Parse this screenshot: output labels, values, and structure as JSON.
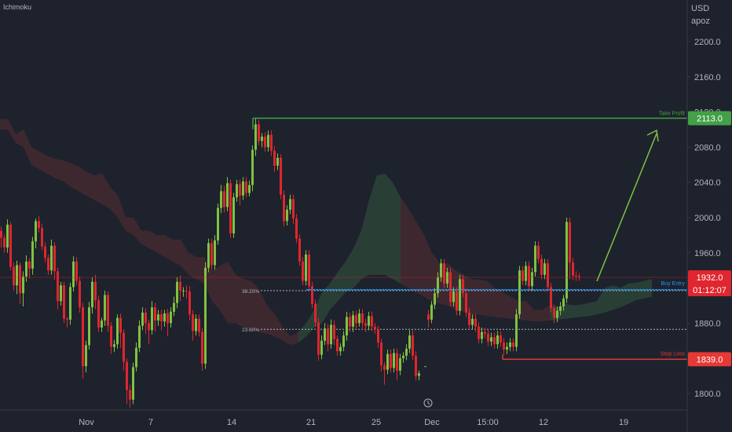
{
  "indicator_label": "Ichimoku",
  "currency": "USD",
  "unit": "apoz",
  "x_ticks": [
    "Nov",
    "7",
    "14",
    "21",
    "25",
    "Dec",
    "15:00",
    "12",
    "19"
  ],
  "y_ticks": [
    "2200.0",
    "2160.0",
    "2120.0",
    "2080.0",
    "2040.0",
    "2000.0",
    "1960.0",
    "1920.0",
    "1880.0",
    "1840.0",
    "1800.0"
  ],
  "colors": {
    "background": "#1e222d",
    "up": "#7fc241",
    "down": "#e0262e",
    "take_profit": "#43a047",
    "stop_loss": "#e53935",
    "entry": "#2196f3",
    "text": "#b2b5be"
  },
  "annotations": {
    "take_profit": {
      "label": "Take Profit",
      "price": 2113.0,
      "badge": "2113.0"
    },
    "buy_entry": {
      "label": "Buy Entry",
      "price": 1918.0
    },
    "stop_loss": {
      "label": "Stop Loss",
      "price": 1839.0,
      "badge": "1839.0"
    },
    "current_price": {
      "price": 1932.0,
      "badge": "1932.0",
      "countdown": "01:12:07"
    },
    "fib_levels": [
      {
        "label": "38.20%",
        "price": 1917.0
      },
      {
        "label": "23.60%",
        "price": 1873.0
      }
    ]
  },
  "chart_data": {
    "type": "candlestick",
    "indicator": "Ichimoku",
    "ylim": [
      1780,
      2230
    ],
    "y_ticks": [
      2200,
      2160,
      2120,
      2080,
      2040,
      2000,
      1960,
      1920,
      1880,
      1840,
      1800
    ],
    "x_ticks": [
      "Nov",
      "7",
      "14",
      "21",
      "25",
      "Dec",
      "15:00",
      "12",
      "19"
    ],
    "candles": [
      [
        0,
        1985,
        1977,
        1990,
        1966
      ],
      [
        4,
        1977,
        1966,
        1981,
        1960
      ],
      [
        8,
        1966,
        1992,
        1998,
        1960
      ],
      [
        12,
        1992,
        1944,
        1995,
        1940
      ],
      [
        16,
        1944,
        1923,
        1949,
        1917
      ],
      [
        20,
        1923,
        1946,
        1951,
        1913
      ],
      [
        24,
        1946,
        1914,
        1949,
        1902
      ],
      [
        28,
        1914,
        1933,
        1939,
        1899
      ],
      [
        32,
        1933,
        1950,
        1957,
        1927
      ],
      [
        36,
        1950,
        1942,
        1954,
        1931
      ],
      [
        40,
        1942,
        1973,
        1978,
        1935
      ],
      [
        44,
        1973,
        1996,
        1999,
        1965
      ],
      [
        48,
        1996,
        1988,
        2002,
        1983
      ],
      [
        52,
        1988,
        1967,
        1993,
        1963
      ],
      [
        56,
        1967,
        1954,
        1972,
        1949
      ],
      [
        60,
        1954,
        1940,
        1958,
        1935
      ],
      [
        64,
        1940,
        1968,
        1975,
        1935
      ],
      [
        68,
        1968,
        1939,
        1972,
        1929
      ],
      [
        72,
        1939,
        1905,
        1943,
        1896
      ],
      [
        76,
        1905,
        1923,
        1927,
        1900
      ],
      [
        80,
        1923,
        1885,
        1927,
        1880
      ],
      [
        84,
        1885,
        1884,
        1887,
        1875
      ],
      [
        88,
        1884,
        1921,
        1926,
        1878
      ],
      [
        92,
        1921,
        1950,
        1956,
        1916
      ],
      [
        96,
        1950,
        1928,
        1955,
        1923
      ],
      [
        100,
        1928,
        1898,
        1933,
        1892
      ],
      [
        104,
        1898,
        1831,
        1903,
        1817
      ],
      [
        108,
        1831,
        1855,
        1860,
        1824
      ],
      [
        112,
        1855,
        1898,
        1904,
        1850
      ],
      [
        116,
        1898,
        1927,
        1932,
        1891
      ],
      [
        120,
        1927,
        1906,
        1935,
        1896
      ],
      [
        124,
        1906,
        1875,
        1911,
        1870
      ],
      [
        128,
        1875,
        1883,
        1886,
        1870
      ],
      [
        132,
        1883,
        1912,
        1917,
        1877
      ],
      [
        136,
        1912,
        1877,
        1916,
        1870
      ],
      [
        140,
        1877,
        1853,
        1881,
        1845
      ],
      [
        144,
        1853,
        1856,
        1861,
        1847
      ],
      [
        148,
        1856,
        1886,
        1890,
        1851
      ],
      [
        152,
        1886,
        1869,
        1891,
        1852
      ],
      [
        156,
        1869,
        1836,
        1873,
        1826
      ],
      [
        160,
        1836,
        1804,
        1840,
        1788
      ],
      [
        164,
        1804,
        1793,
        1810,
        1784
      ],
      [
        168,
        1793,
        1830,
        1835,
        1788
      ],
      [
        172,
        1830,
        1852,
        1858,
        1825
      ],
      [
        176,
        1852,
        1877,
        1883,
        1847
      ],
      [
        180,
        1877,
        1892,
        1898,
        1872
      ],
      [
        184,
        1892,
        1880,
        1897,
        1868
      ],
      [
        188,
        1880,
        1872,
        1884,
        1856
      ],
      [
        192,
        1872,
        1898,
        1905,
        1867
      ],
      [
        196,
        1898,
        1883,
        1903,
        1870
      ],
      [
        200,
        1883,
        1890,
        1895,
        1877
      ],
      [
        204,
        1890,
        1882,
        1895,
        1872
      ],
      [
        208,
        1882,
        1891,
        1895,
        1876
      ],
      [
        212,
        1891,
        1880,
        1896,
        1865
      ],
      [
        216,
        1880,
        1893,
        1898,
        1875
      ],
      [
        220,
        1893,
        1903,
        1910,
        1888
      ],
      [
        224,
        1903,
        1927,
        1932,
        1897
      ],
      [
        228,
        1927,
        1917,
        1934,
        1905
      ],
      [
        232,
        1917,
        1917,
        1921,
        1910
      ],
      [
        236,
        1917,
        1916,
        1923,
        1908
      ],
      [
        240,
        1916,
        1890,
        1922,
        1883
      ],
      [
        244,
        1890,
        1871,
        1895,
        1860
      ],
      [
        248,
        1871,
        1885,
        1890,
        1866
      ],
      [
        252,
        1885,
        1870,
        1890,
        1865
      ],
      [
        256,
        1870,
        1834,
        1874,
        1826
      ],
      [
        260,
        1834,
        1943,
        1949,
        1828
      ],
      [
        264,
        1943,
        1971,
        1976,
        1938
      ],
      [
        268,
        1971,
        1946,
        1976,
        1941
      ],
      [
        272,
        1946,
        1974,
        1980,
        1941
      ],
      [
        276,
        1974,
        2011,
        2016,
        1969
      ],
      [
        280,
        2011,
        2030,
        2037,
        2005
      ],
      [
        284,
        2030,
        2012,
        2036,
        2006
      ],
      [
        288,
        2012,
        2039,
        2046,
        2007
      ],
      [
        292,
        2039,
        1982,
        2043,
        1977
      ],
      [
        296,
        1982,
        2023,
        2028,
        1977
      ],
      [
        300,
        2023,
        2038,
        2043,
        2018
      ],
      [
        304,
        2038,
        2025,
        2043,
        2014
      ],
      [
        308,
        2025,
        2041,
        2046,
        2020
      ],
      [
        312,
        2041,
        2028,
        2046,
        2023
      ],
      [
        316,
        2028,
        2037,
        2042,
        2024
      ],
      [
        320,
        2037,
        2077,
        2082,
        2030
      ],
      [
        324,
        2077,
        2106,
        2113,
        2070
      ],
      [
        328,
        2106,
        2087,
        2111,
        2082
      ],
      [
        332,
        2087,
        2092,
        2096,
        2080
      ],
      [
        336,
        2092,
        2080,
        2097,
        2075
      ],
      [
        340,
        2080,
        2094,
        2099,
        2075
      ],
      [
        344,
        2094,
        2076,
        2099,
        2070
      ],
      [
        348,
        2076,
        2059,
        2081,
        2052
      ],
      [
        352,
        2059,
        2068,
        2073,
        2054
      ],
      [
        356,
        2068,
        2026,
        2072,
        2021
      ],
      [
        360,
        2026,
        1996,
        2031,
        1990
      ],
      [
        364,
        1996,
        2009,
        2014,
        1991
      ],
      [
        368,
        2009,
        2021,
        2026,
        2004
      ],
      [
        372,
        2021,
        1999,
        2026,
        1993
      ],
      [
        376,
        1999,
        1976,
        2004,
        1971
      ],
      [
        380,
        1976,
        1950,
        1981,
        1945
      ],
      [
        384,
        1950,
        1928,
        1955,
        1923
      ],
      [
        388,
        1928,
        1958,
        1963,
        1923
      ],
      [
        392,
        1958,
        1922,
        1963,
        1918
      ],
      [
        396,
        1922,
        1902,
        1927,
        1897
      ],
      [
        400,
        1902,
        1881,
        1907,
        1876
      ],
      [
        404,
        1881,
        1844,
        1886,
        1837
      ],
      [
        408,
        1844,
        1860,
        1866,
        1839
      ],
      [
        412,
        1860,
        1874,
        1880,
        1855
      ],
      [
        416,
        1874,
        1856,
        1879,
        1848
      ],
      [
        420,
        1856,
        1878,
        1884,
        1851
      ],
      [
        424,
        1878,
        1862,
        1883,
        1855
      ],
      [
        428,
        1862,
        1848,
        1866,
        1843
      ],
      [
        432,
        1848,
        1853,
        1857,
        1843
      ],
      [
        436,
        1853,
        1866,
        1871,
        1848
      ],
      [
        440,
        1866,
        1887,
        1893,
        1860
      ],
      [
        444,
        1887,
        1876,
        1892,
        1870
      ],
      [
        448,
        1876,
        1889,
        1894,
        1870
      ],
      [
        452,
        1889,
        1880,
        1894,
        1873
      ],
      [
        456,
        1880,
        1891,
        1896,
        1876
      ],
      [
        460,
        1891,
        1880,
        1896,
        1875
      ],
      [
        464,
        1880,
        1877,
        1885,
        1870
      ],
      [
        468,
        1877,
        1888,
        1893,
        1872
      ],
      [
        472,
        1888,
        1876,
        1893,
        1871
      ],
      [
        476,
        1876,
        1873,
        1880,
        1868
      ],
      [
        480,
        1873,
        1858,
        1877,
        1852
      ],
      [
        484,
        1858,
        1832,
        1862,
        1825
      ],
      [
        488,
        1832,
        1827,
        1836,
        1810
      ],
      [
        492,
        1827,
        1845,
        1850,
        1822
      ],
      [
        496,
        1845,
        1829,
        1850,
        1824
      ],
      [
        500,
        1829,
        1846,
        1851,
        1824
      ],
      [
        504,
        1846,
        1826,
        1851,
        1815
      ],
      [
        508,
        1826,
        1840,
        1845,
        1821
      ],
      [
        512,
        1840,
        1843,
        1847,
        1835
      ],
      [
        516,
        1843,
        1851,
        1856,
        1838
      ],
      [
        520,
        1851,
        1866,
        1872,
        1846
      ],
      [
        524,
        1866,
        1843,
        1872,
        1838
      ],
      [
        528,
        1843,
        1820,
        1848,
        1815
      ],
      [
        532,
        1820,
        1823,
        1826,
        1815
      ],
      [
        540,
        1831,
        1831,
        1831,
        1831
      ],
      [
        544,
        1890,
        1884,
        1895,
        1875
      ],
      [
        548,
        1884,
        1901,
        1905,
        1880
      ],
      [
        552,
        1901,
        1914,
        1920,
        1896
      ],
      [
        556,
        1914,
        1932,
        1938,
        1909
      ],
      [
        560,
        1932,
        1948,
        1953,
        1927
      ],
      [
        564,
        1948,
        1925,
        1953,
        1920
      ],
      [
        568,
        1925,
        1938,
        1943,
        1920
      ],
      [
        572,
        1938,
        1904,
        1943,
        1899
      ],
      [
        576,
        1904,
        1916,
        1921,
        1899
      ],
      [
        580,
        1916,
        1894,
        1921,
        1889
      ],
      [
        584,
        1894,
        1930,
        1935,
        1889
      ],
      [
        588,
        1930,
        1914,
        1935,
        1909
      ],
      [
        592,
        1914,
        1892,
        1919,
        1887
      ],
      [
        596,
        1892,
        1878,
        1897,
        1873
      ],
      [
        600,
        1878,
        1885,
        1890,
        1873
      ],
      [
        604,
        1885,
        1876,
        1890,
        1870
      ],
      [
        608,
        1876,
        1862,
        1881,
        1857
      ],
      [
        612,
        1862,
        1870,
        1875,
        1857
      ],
      [
        616,
        1870,
        1868,
        1875,
        1863
      ],
      [
        620,
        1868,
        1859,
        1873,
        1854
      ],
      [
        624,
        1859,
        1864,
        1869,
        1854
      ],
      [
        628,
        1864,
        1856,
        1869,
        1851
      ],
      [
        632,
        1856,
        1866,
        1871,
        1851
      ],
      [
        636,
        1866,
        1858,
        1871,
        1853
      ],
      [
        640,
        1858,
        1850,
        1863,
        1844
      ],
      [
        644,
        1850,
        1853,
        1858,
        1845
      ],
      [
        648,
        1853,
        1858,
        1863,
        1848
      ],
      [
        652,
        1858,
        1853,
        1863,
        1848
      ],
      [
        656,
        1853,
        1890,
        1896,
        1848
      ],
      [
        660,
        1890,
        1940,
        1945,
        1885
      ],
      [
        664,
        1940,
        1928,
        1945,
        1923
      ],
      [
        668,
        1928,
        1945,
        1950,
        1923
      ],
      [
        672,
        1945,
        1922,
        1950,
        1917
      ],
      [
        676,
        1922,
        1938,
        1943,
        1917
      ],
      [
        680,
        1938,
        1968,
        1973,
        1933
      ],
      [
        684,
        1968,
        1953,
        1973,
        1948
      ],
      [
        688,
        1953,
        1935,
        1958,
        1930
      ],
      [
        692,
        1935,
        1948,
        1953,
        1930
      ],
      [
        696,
        1948,
        1921,
        1953,
        1916
      ],
      [
        700,
        1921,
        1897,
        1926,
        1892
      ],
      [
        704,
        1897,
        1886,
        1901,
        1880
      ],
      [
        708,
        1886,
        1894,
        1899,
        1881
      ],
      [
        712,
        1894,
        1899,
        1904,
        1889
      ],
      [
        716,
        1899,
        1908,
        1912,
        1894
      ],
      [
        720,
        1908,
        1995,
        2000,
        1903
      ],
      [
        724,
        1995,
        1949,
        2000,
        1930
      ],
      [
        728,
        1949,
        1934,
        1954,
        1929
      ],
      [
        732,
        1934,
        1933,
        1939,
        1928
      ],
      [
        736,
        1933,
        1932,
        1937,
        1928
      ]
    ],
    "ichimoku_cloud": {
      "span_a": [
        2112,
        2112,
        2095,
        2100,
        2080,
        2075,
        2070,
        2067,
        2065,
        2062,
        2058,
        2052,
        2048,
        2050,
        2035,
        2025,
        2000,
        2000,
        1985,
        1985,
        1980,
        1980,
        1975,
        1975,
        1960,
        1955,
        1955,
        1940,
        1945,
        1950,
        1935,
        1930,
        1928,
        1918,
        1900,
        1890,
        1875,
        1865,
        1870,
        1880,
        1895,
        1915,
        1925,
        1938,
        1950,
        1965,
        1985,
        2020,
        2048,
        2050,
        2040,
        2023,
        2010,
        1995,
        1980,
        1960,
        1948,
        1948,
        1940,
        1935,
        1930,
        1929,
        1928,
        1920,
        1915,
        1910,
        1905,
        1905,
        1895,
        1895,
        1900,
        1898,
        1902,
        1900,
        1901,
        1903,
        1905,
        1920,
        1923,
        1920,
        1925,
        1926,
        1928,
        1930
      ],
      "span_b": [
        2100,
        2100,
        2085,
        2080,
        2060,
        2055,
        2050,
        2045,
        2042,
        2035,
        2030,
        2025,
        2020,
        2015,
        2010,
        2000,
        1985,
        1980,
        1970,
        1965,
        1960,
        1955,
        1950,
        1945,
        1935,
        1930,
        1925,
        1905,
        1895,
        1880,
        1880,
        1875,
        1872,
        1870,
        1868,
        1865,
        1860,
        1855,
        1858,
        1865,
        1875,
        1880,
        1895,
        1905,
        1915,
        1920,
        1930,
        1935,
        1935,
        1935,
        1930,
        1925,
        1920,
        1915,
        1910,
        1905,
        1902,
        1900,
        1896,
        1893,
        1890,
        1890,
        1888,
        1887,
        1886,
        1885,
        1884,
        1883,
        1882,
        1882,
        1883,
        1884,
        1885,
        1886,
        1887,
        1888,
        1890,
        1892,
        1895,
        1898,
        1902,
        1906,
        1908,
        1910
      ],
      "x_step": 10
    }
  }
}
